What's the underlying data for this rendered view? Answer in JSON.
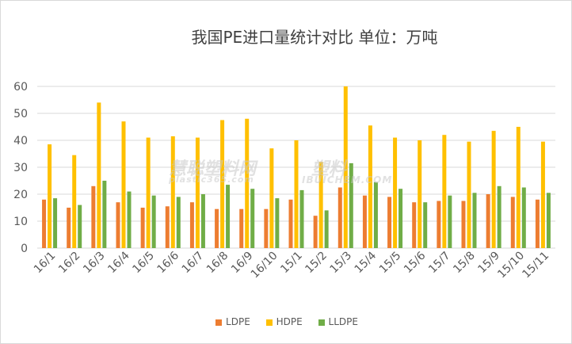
{
  "chart_data": {
    "type": "bar",
    "title": "我国PE进口量统计对比 单位：万吨",
    "categories": [
      "16/1",
      "16/2",
      "16/3",
      "16/4",
      "16/5",
      "16/6",
      "16/7",
      "16/8",
      "16/9",
      "16/10",
      "15/1",
      "15/2",
      "15/3",
      "15/4",
      "15/5",
      "15/6",
      "15/7",
      "15/8",
      "15/9",
      "15/10",
      "15/11"
    ],
    "series": [
      {
        "name": "LDPE",
        "color": "#ED7D31",
        "values": [
          18,
          15,
          23,
          17,
          15,
          15.5,
          17,
          14.5,
          14.5,
          14.5,
          18,
          12,
          22.5,
          19.5,
          19,
          17,
          17.5,
          17.5,
          20,
          19,
          18
        ]
      },
      {
        "name": "HDPE",
        "color": "#FFC000",
        "values": [
          38.5,
          34.5,
          54,
          47,
          41,
          41.5,
          41,
          47.5,
          48,
          37,
          40,
          32,
          60,
          45.5,
          41,
          40,
          42,
          39.5,
          43.5,
          45,
          39.5
        ]
      },
      {
        "name": "LLDPE",
        "color": "#70AD47",
        "values": [
          18.5,
          16,
          25,
          21,
          19.5,
          19,
          20,
          23.5,
          22,
          18.5,
          21.5,
          14,
          31.5,
          24.5,
          22,
          17,
          19.5,
          20.5,
          23,
          22.5,
          20.5
        ]
      }
    ],
    "ylim": [
      0,
      60
    ],
    "yticks": [
      0,
      10,
      20,
      30,
      40,
      50,
      60
    ],
    "grid": true,
    "legend": "bottom"
  },
  "watermarks": [
    "慧聪塑料网",
    "plastic365.com",
    "塑料",
    "IBUICHEM.COM"
  ]
}
